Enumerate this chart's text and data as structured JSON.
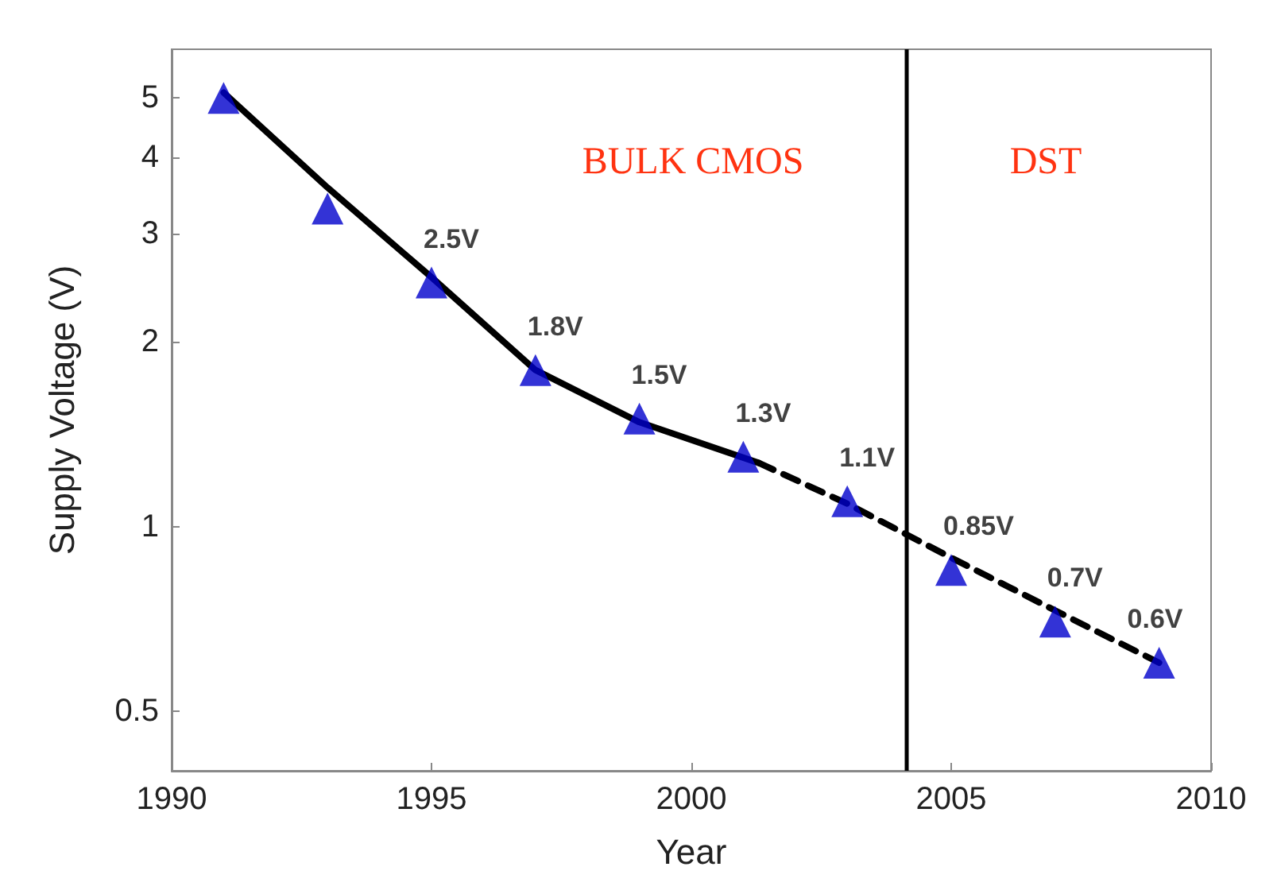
{
  "chart_data": {
    "type": "scatter",
    "xlabel": "Year",
    "ylabel": "Supply Voltage (V)",
    "log": "y",
    "grid": false,
    "xlim": [
      1990,
      2010
    ],
    "xticks": [
      1990,
      1995,
      2000,
      2005,
      2010
    ],
    "ylim": [
      0.4,
      6
    ],
    "yticks": [
      0.5,
      1,
      2,
      3,
      4,
      5
    ],
    "series": [
      {
        "type": "line",
        "color": "#000000",
        "line_style": "solid",
        "marker": "none",
        "x": [
          1991,
          1993,
          1995,
          1997,
          1999,
          2001.3
        ],
        "values": [
          5.1,
          3.57,
          2.55,
          1.8,
          1.48,
          1.27
        ]
      },
      {
        "type": "line",
        "color": "#000000",
        "line_style": "dashed",
        "marker": "none",
        "x": [
          2001.3,
          2003,
          2005,
          2007,
          2009
        ],
        "values": [
          1.27,
          1.09,
          0.89,
          0.73,
          0.6
        ]
      },
      {
        "color": "#0000cc",
        "marker": "triangle",
        "x": [
          1991,
          1993,
          1995,
          1997,
          1999,
          2001,
          2003,
          2005,
          2007,
          2009
        ],
        "values": [
          5,
          3.3,
          2.5,
          1.8,
          1.5,
          1.3,
          1.1,
          0.85,
          0.7,
          0.6
        ],
        "value_labels": [
          null,
          null,
          "2.5V",
          "1.8V",
          "1.5V",
          "1.3V",
          "1.1V",
          "0.85V",
          "0.7V",
          "0.6V"
        ]
      }
    ],
    "ref_lines": [
      {
        "axis": "x",
        "value": 2004.15,
        "color": "#000000"
      }
    ],
    "annotations": [
      "BULK CMOS",
      "DST"
    ]
  }
}
